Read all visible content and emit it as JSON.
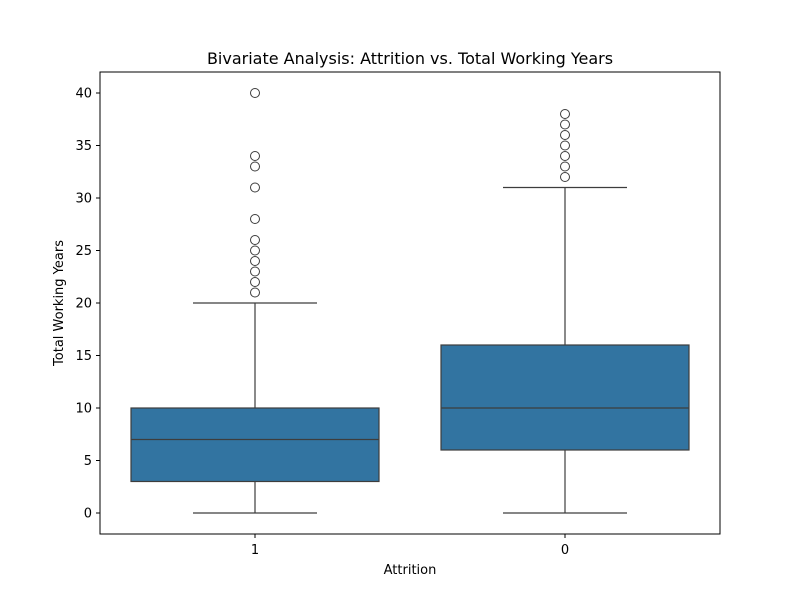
{
  "chart_data": {
    "type": "box",
    "title": "Bivariate Analysis: Attrition vs. Total Working Years",
    "xlabel": "Attrition",
    "ylabel": "Total Working Years",
    "categories": [
      "1",
      "0"
    ],
    "ylim": [
      -2,
      42
    ],
    "yticks": [
      0,
      5,
      10,
      15,
      20,
      25,
      30,
      35,
      40
    ],
    "grid": false,
    "box_color": "#3274a1",
    "line_color": "#3d3d3d",
    "boxes": [
      {
        "category": "1",
        "whisker_low": 0,
        "q1": 3,
        "median": 7,
        "q3": 10,
        "whisker_high": 20,
        "outliers": [
          21,
          22,
          23,
          24,
          25,
          26,
          28,
          31,
          33,
          34,
          40
        ]
      },
      {
        "category": "0",
        "whisker_low": 0,
        "q1": 6,
        "median": 10,
        "q3": 16,
        "whisker_high": 31,
        "outliers": [
          32,
          33,
          34,
          35,
          36,
          37,
          38
        ]
      }
    ]
  }
}
